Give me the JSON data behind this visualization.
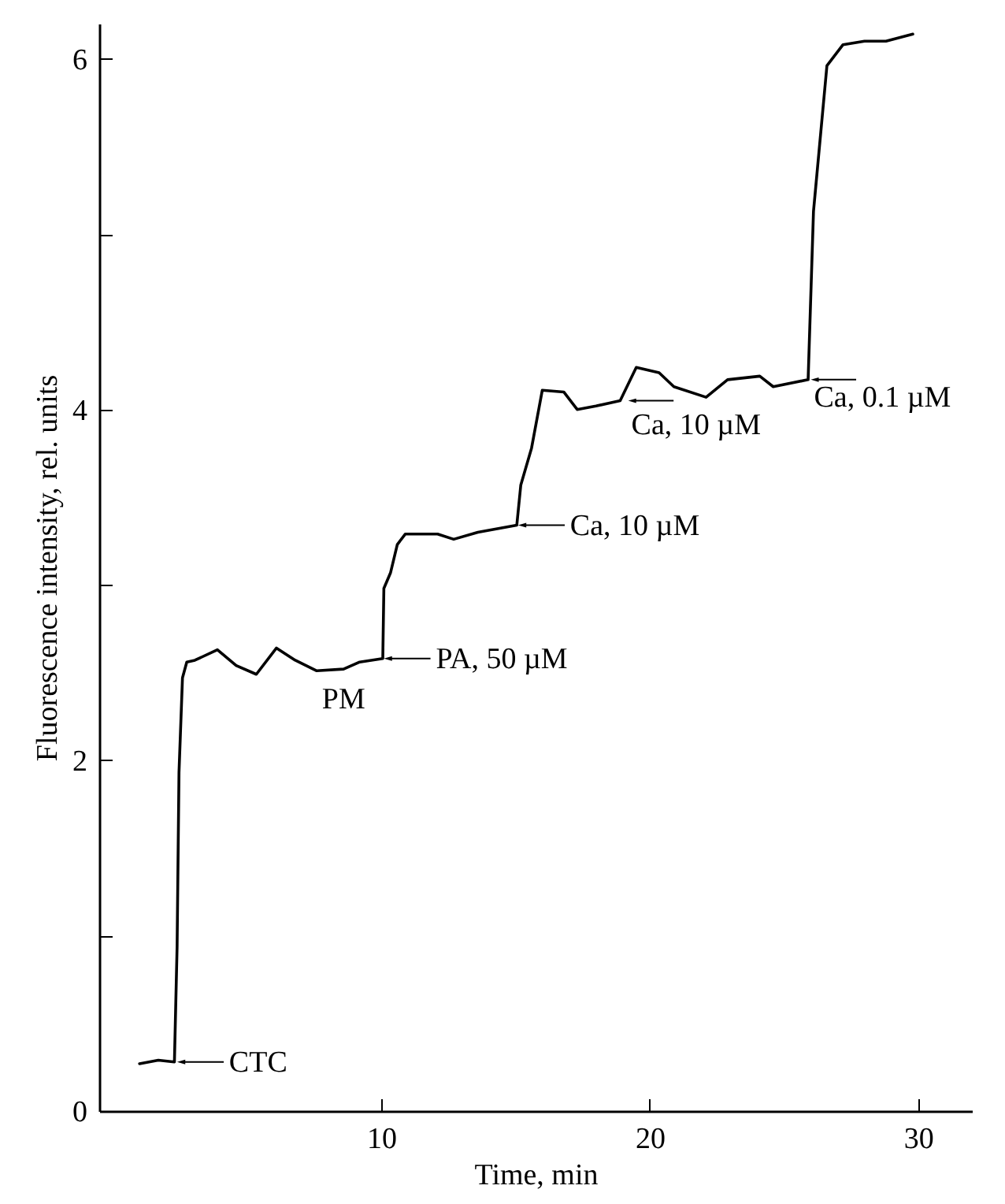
{
  "chart_data": {
    "type": "line",
    "xlabel": "Time, min",
    "ylabel": "Fluorescence intensity, rel. units",
    "xlim": [
      -0.5,
      32
    ],
    "xticks": [
      10,
      20,
      30
    ],
    "ylim": [
      0,
      6.2
    ],
    "yticks": [
      0,
      {
        "value": 1,
        "label": null
      },
      2,
      {
        "value": 3,
        "label": null
      },
      4,
      {
        "value": 5,
        "label": null
      },
      6
    ],
    "grid": false,
    "marker": "none",
    "line_style": "solid",
    "series": [
      {
        "color": "#000000",
        "x": [
          1.0,
          1.7,
          2.3,
          2.4,
          2.47,
          2.6,
          2.76,
          3.06,
          3.9,
          4.6,
          5.35,
          6.1,
          6.8,
          7.6,
          8.6,
          9.2,
          10.06,
          10.1,
          10.35,
          10.6,
          10.9,
          12.1,
          12.7,
          13.6,
          15.05,
          15.2,
          15.6,
          16.0,
          16.8,
          17.3,
          18.0,
          18.9,
          19.5,
          20.35,
          20.9,
          22.1,
          22.9,
          24.1,
          24.6,
          25.9,
          26.1,
          26.6,
          27.2,
          28.0,
          28.8,
          29.8
        ],
        "values": [
          0.27,
          0.29,
          0.28,
          0.94,
          1.93,
          2.47,
          2.56,
          2.57,
          2.63,
          2.54,
          2.49,
          2.64,
          2.57,
          2.51,
          2.52,
          2.56,
          2.58,
          2.98,
          3.07,
          3.23,
          3.29,
          3.29,
          3.26,
          3.3,
          3.34,
          3.57,
          3.78,
          4.11,
          4.1,
          4.0,
          4.02,
          4.05,
          4.24,
          4.21,
          4.13,
          4.07,
          4.17,
          4.19,
          4.13,
          4.17,
          5.13,
          5.96,
          6.08,
          6.1,
          6.1,
          6.14
        ]
      }
    ],
    "annotations": [
      {
        "text": "CTC",
        "x": 2.4,
        "y": 0.28
      },
      {
        "text": "PM",
        "x": 8.6,
        "y": 2.52
      },
      {
        "text": "PA, 50 µM",
        "x": 10.1,
        "y": 2.58
      },
      {
        "text": "Ca, 10 µM",
        "x": 15.1,
        "y": 3.34
      },
      {
        "text": "Ca, 10 µM",
        "x": 19.2,
        "y": 4.05
      },
      {
        "text": "Ca, 0.1 µM",
        "x": 26.0,
        "y": 4.17
      }
    ]
  }
}
